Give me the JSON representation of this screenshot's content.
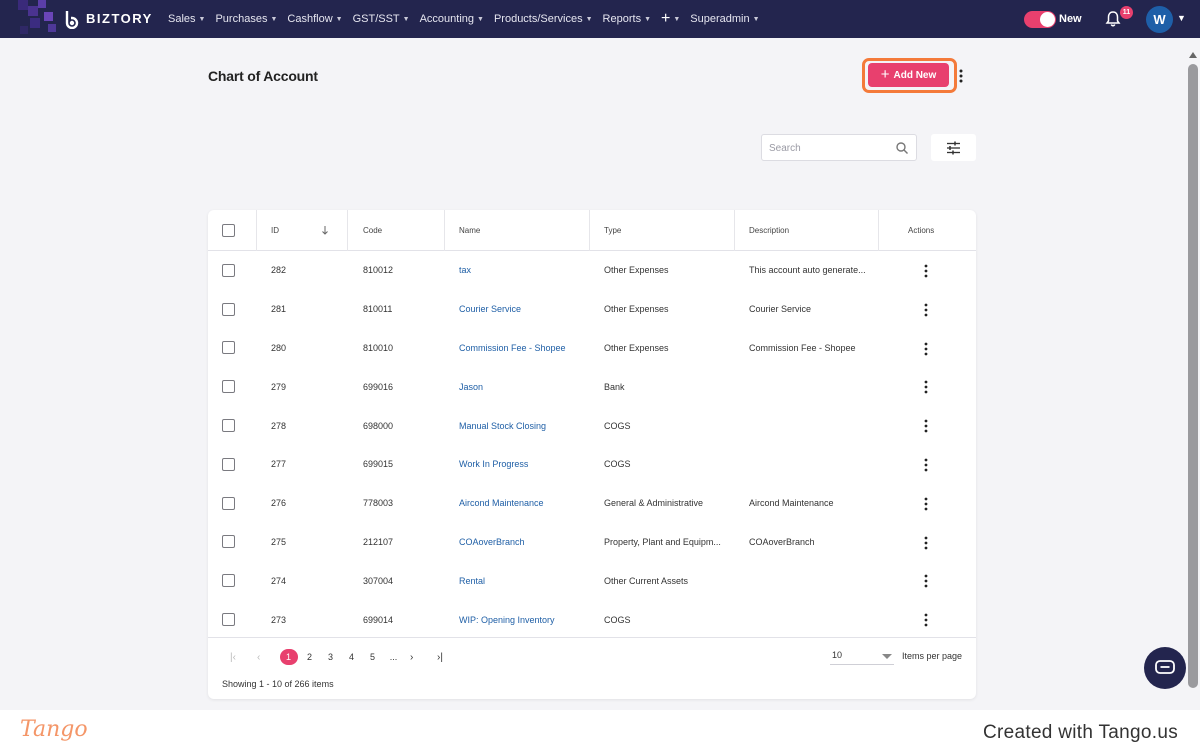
{
  "brand": {
    "name": "BIZTORY"
  },
  "nav": {
    "items": [
      {
        "label": "Sales"
      },
      {
        "label": "Purchases"
      },
      {
        "label": "Cashflow"
      },
      {
        "label": "GST/SST"
      },
      {
        "label": "Accounting"
      },
      {
        "label": "Products/Services"
      },
      {
        "label": "Reports"
      },
      {
        "label": "+"
      },
      {
        "label": "Superadmin"
      }
    ],
    "toggle_label": "New",
    "notification_count": "11",
    "avatar_initial": "W"
  },
  "page": {
    "title": "Chart of Account",
    "add_new_label": "Add New",
    "search_placeholder": "Search"
  },
  "table": {
    "columns": {
      "id": "ID",
      "code": "Code",
      "name": "Name",
      "type": "Type",
      "description": "Description",
      "actions": "Actions"
    },
    "rows": [
      {
        "id": "282",
        "code": "810012",
        "name": "tax",
        "type": "Other Expenses",
        "description": "This account auto generate..."
      },
      {
        "id": "281",
        "code": "810011",
        "name": "Courier Service",
        "type": "Other Expenses",
        "description": "Courier Service"
      },
      {
        "id": "280",
        "code": "810010",
        "name": "Commission Fee - Shopee",
        "type": "Other Expenses",
        "description": "Commission Fee - Shopee"
      },
      {
        "id": "279",
        "code": "699016",
        "name": "Jason",
        "type": "Bank",
        "description": ""
      },
      {
        "id": "278",
        "code": "698000",
        "name": "Manual Stock Closing",
        "type": "COGS",
        "description": ""
      },
      {
        "id": "277",
        "code": "699015",
        "name": "Work In Progress",
        "type": "COGS",
        "description": ""
      },
      {
        "id": "276",
        "code": "778003",
        "name": "Aircond Maintenance",
        "type": "General & Administrative",
        "description": "Aircond Maintenance"
      },
      {
        "id": "275",
        "code": "212107",
        "name": "COAoverBranch",
        "type": "Property, Plant and Equipm...",
        "description": "COAoverBranch"
      },
      {
        "id": "274",
        "code": "307004",
        "name": "Rental",
        "type": "Other Current Assets",
        "description": ""
      },
      {
        "id": "273",
        "code": "699014",
        "name": "WIP: Opening Inventory",
        "type": "COGS",
        "description": ""
      }
    ]
  },
  "pagination": {
    "pages": [
      "1",
      "2",
      "3",
      "4",
      "5",
      "..."
    ],
    "current_page": "1",
    "items_per_page_value": "10",
    "items_per_page_label": "Items per page",
    "showing": "Showing 1 - 10 of 266 items"
  },
  "footer": {
    "logo": "Tango",
    "created_with": "Created with Tango.us"
  },
  "colors": {
    "nav_bg": "#23254e",
    "accent": "#e8406e",
    "highlight_ring": "#f47a3a",
    "link": "#1f5fa6"
  }
}
